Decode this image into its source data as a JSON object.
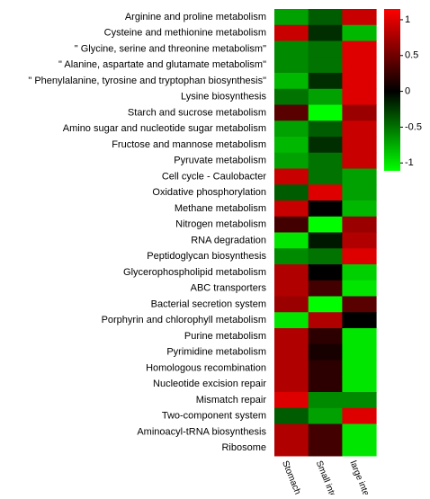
{
  "chart_data": {
    "type": "heatmap",
    "categories": [
      "Arginine and proline metabolism",
      "Cysteine and methionine metabolism",
      "\" Glycine, serine and threonine metabolism\"",
      "\" Alanine, aspartate and glutamate metabolism\"",
      "\" Phenylalanine, tyrosine and tryptophan biosynthesis\"",
      "Lysine biosynthesis",
      "Starch and sucrose metabolism",
      "Amino sugar and nucleotide sugar metabolism",
      "Fructose and mannose metabolism",
      "Pyruvate metabolism",
      "Cell cycle - Caulobacter",
      "Oxidative phosphorylation",
      "Methane metabolism",
      "Nitrogen metabolism",
      "RNA degradation",
      "Peptidoglycan biosynthesis",
      "Glycerophospholipid metabolism",
      "ABC transporters",
      "Bacterial secretion system",
      "Porphyrin and chlorophyll metabolism",
      "Purine metabolism",
      "Pyrimidine metabolism",
      "Homologous recombination",
      "Nucleotide excision repair",
      "Mismatch repair",
      "Two-component system",
      "Aminoacyl-tRNA biosynthesis",
      "Ribosome"
    ],
    "series": [
      {
        "name": "Stomach",
        "values": [
          -0.7,
          0.9,
          -0.6,
          -0.6,
          -0.8,
          -0.5,
          0.4,
          -0.7,
          -0.8,
          -0.7,
          0.9,
          -0.4,
          0.9,
          0.3,
          -1.0,
          -0.6,
          0.8,
          0.8,
          0.7,
          -1.0,
          0.8,
          0.8,
          0.8,
          0.8,
          1.0,
          -0.4,
          0.8,
          0.8
        ]
      },
      {
        "name": "Small intestine",
        "values": [
          -0.4,
          -0.2,
          -0.5,
          -0.5,
          -0.2,
          -0.7,
          -1.1,
          -0.4,
          -0.2,
          -0.5,
          -0.5,
          1.0,
          0.0,
          -1.1,
          -0.1,
          -0.5,
          0.0,
          0.3,
          -1.1,
          0.8,
          0.2,
          0.1,
          0.2,
          0.2,
          -0.6,
          -0.7,
          0.3,
          0.3
        ]
      },
      {
        "name": "large intestine",
        "values": [
          0.9,
          -0.8,
          1.0,
          1.0,
          1.0,
          1.0,
          0.7,
          0.9,
          0.9,
          0.9,
          -0.7,
          -0.7,
          -0.8,
          0.7,
          0.8,
          1.0,
          -0.9,
          -1.0,
          0.4,
          0.0,
          -1.0,
          -1.0,
          -1.0,
          -1.0,
          -0.6,
          1.0,
          -1.0,
          -1.0
        ]
      }
    ],
    "colormap": [
      "#00ff00",
      "#000000",
      "#ff0000"
    ],
    "clim": [
      -1.11,
      1.15
    ],
    "cticks": [
      1,
      0.5,
      0,
      -0.5,
      -1
    ]
  }
}
